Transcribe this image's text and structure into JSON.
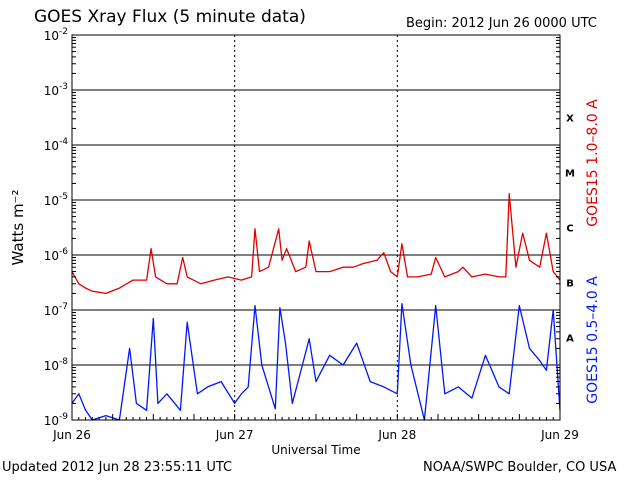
{
  "header": {
    "title": "GOES Xray Flux (5 minute data)",
    "begin": "Begin:  2012 Jun 26 0000 UTC"
  },
  "footer": {
    "updated": "Updated 2012 Jun 28 23:55:11 UTC",
    "credit": "NOAA/SWPC Boulder, CO USA"
  },
  "colors": {
    "long_channel": "#e00000",
    "short_channel": "#0018ff",
    "grid": "#000000"
  },
  "chart_data": {
    "type": "line",
    "xlabel": "Universal Time",
    "ylabel": "Watts m⁻²",
    "y_scale": "log",
    "ylim": [
      1e-09,
      0.01
    ],
    "yticks": [
      1e-09,
      1e-08,
      1e-07,
      1e-06,
      1e-05,
      0.0001,
      0.001,
      0.01
    ],
    "ytick_labels": [
      {
        "base": "10",
        "exp": "-9"
      },
      {
        "base": "10",
        "exp": "-8"
      },
      {
        "base": "10",
        "exp": "-7"
      },
      {
        "base": "10",
        "exp": "-6"
      },
      {
        "base": "10",
        "exp": "-5"
      },
      {
        "base": "10",
        "exp": "-4"
      },
      {
        "base": "10",
        "exp": "-3"
      },
      {
        "base": "10",
        "exp": "-2"
      }
    ],
    "xlim": [
      "2012-06-26 00:00",
      "2012-06-29 00:00"
    ],
    "xticks": [
      "2012-06-26 00:00",
      "2012-06-27 00:00",
      "2012-06-28 00:00",
      "2012-06-29 00:00"
    ],
    "xtick_labels": [
      "Jun 26",
      "Jun 27",
      "Jun 28",
      "Jun 29"
    ],
    "flare_classes": [
      {
        "label": "A",
        "flux": 1e-08
      },
      {
        "label": "B",
        "flux": 1e-07
      },
      {
        "label": "C",
        "flux": 1e-06
      },
      {
        "label": "M",
        "flux": 1e-05
      },
      {
        "label": "X",
        "flux": 0.0001
      }
    ],
    "grid": true,
    "series": [
      {
        "name": "GOES15 1.0–8.0 A",
        "color": "#e00000",
        "x": [
          "2012-06-26 00:00",
          "2012-06-26 01:00",
          "2012-06-26 02:00",
          "2012-06-26 03:00",
          "2012-06-26 05:00",
          "2012-06-26 07:00",
          "2012-06-26 09:00",
          "2012-06-26 11:00",
          "2012-06-26 11:40",
          "2012-06-26 12:20",
          "2012-06-26 14:00",
          "2012-06-26 15:30",
          "2012-06-26 16:20",
          "2012-06-26 17:00",
          "2012-06-26 19:00",
          "2012-06-26 21:00",
          "2012-06-26 23:00",
          "2012-06-27 01:00",
          "2012-06-27 02:30",
          "2012-06-27 03:00",
          "2012-06-27 03:40",
          "2012-06-27 05:00",
          "2012-06-27 06:30",
          "2012-06-27 07:00",
          "2012-06-27 07:40",
          "2012-06-27 09:00",
          "2012-06-27 10:30",
          "2012-06-27 11:00",
          "2012-06-27 12:00",
          "2012-06-27 14:00",
          "2012-06-27 16:00",
          "2012-06-27 17:30",
          "2012-06-27 19:00",
          "2012-06-27 21:00",
          "2012-06-27 22:00",
          "2012-06-27 23:00",
          "2012-06-28 00:00",
          "2012-06-28 00:40",
          "2012-06-28 01:30",
          "2012-06-28 03:00",
          "2012-06-28 05:00",
          "2012-06-28 05:40",
          "2012-06-28 07:00",
          "2012-06-28 09:00",
          "2012-06-28 09:40",
          "2012-06-28 11:00",
          "2012-06-28 13:00",
          "2012-06-28 15:00",
          "2012-06-28 16:00",
          "2012-06-28 16:30",
          "2012-06-28 17:30",
          "2012-06-28 18:30",
          "2012-06-28 19:30",
          "2012-06-28 21:00",
          "2012-06-28 22:00",
          "2012-06-28 23:00",
          "2012-06-29 00:00"
        ],
        "y": [
          5e-07,
          3e-07,
          2.5e-07,
          2.2e-07,
          2e-07,
          2.5e-07,
          3.5e-07,
          3.5e-07,
          1.3e-06,
          4e-07,
          3e-07,
          3e-07,
          9e-07,
          4e-07,
          3e-07,
          3.5e-07,
          4e-07,
          3.5e-07,
          4e-07,
          3e-06,
          5e-07,
          6e-07,
          3e-06,
          8e-07,
          1.3e-06,
          5e-07,
          6e-07,
          1.8e-06,
          5e-07,
          5e-07,
          6e-07,
          6e-07,
          7e-07,
          8e-07,
          1.1e-06,
          5e-07,
          4e-07,
          1.6e-06,
          4e-07,
          4e-07,
          4.5e-07,
          9e-07,
          4e-07,
          5e-07,
          6e-07,
          4e-07,
          4.5e-07,
          4e-07,
          4e-07,
          1.3e-05,
          6e-07,
          2.5e-06,
          8e-07,
          6e-07,
          2.5e-06,
          5e-07,
          3.5e-07
        ]
      },
      {
        "name": "GOES15 0.5–4.0 A",
        "color": "#0018ff",
        "x": [
          "2012-06-26 00:00",
          "2012-06-26 01:00",
          "2012-06-26 02:00",
          "2012-06-26 03:00",
          "2012-06-26 05:00",
          "2012-06-26 07:00",
          "2012-06-26 08:30",
          "2012-06-26 09:30",
          "2012-06-26 11:00",
          "2012-06-26 12:00",
          "2012-06-26 12:40",
          "2012-06-26 14:00",
          "2012-06-26 16:00",
          "2012-06-26 17:00",
          "2012-06-26 18:30",
          "2012-06-26 20:00",
          "2012-06-26 22:00",
          "2012-06-27 00:00",
          "2012-06-27 01:00",
          "2012-06-27 02:00",
          "2012-06-27 03:00",
          "2012-06-27 04:00",
          "2012-06-27 06:00",
          "2012-06-27 06:40",
          "2012-06-27 07:30",
          "2012-06-27 08:30",
          "2012-06-27 10:00",
          "2012-06-27 11:00",
          "2012-06-27 12:00",
          "2012-06-27 14:00",
          "2012-06-27 16:00",
          "2012-06-27 18:00",
          "2012-06-27 20:00",
          "2012-06-27 22:00",
          "2012-06-28 00:00",
          "2012-06-28 00:40",
          "2012-06-28 02:00",
          "2012-06-28 04:00",
          "2012-06-28 05:40",
          "2012-06-28 07:00",
          "2012-06-28 09:00",
          "2012-06-28 11:00",
          "2012-06-28 13:00",
          "2012-06-28 15:00",
          "2012-06-28 16:30",
          "2012-06-28 18:00",
          "2012-06-28 19:30",
          "2012-06-28 21:00",
          "2012-06-28 22:00",
          "2012-06-28 23:00",
          "2012-06-29 00:00"
        ],
        "y": [
          2e-09,
          3e-09,
          1.5e-09,
          1e-09,
          1.2e-09,
          1e-09,
          2e-08,
          2e-09,
          1.5e-09,
          7e-08,
          2e-09,
          3e-09,
          1.5e-09,
          6e-08,
          3e-09,
          4e-09,
          5e-09,
          2e-09,
          3e-09,
          4e-09,
          1.2e-07,
          1e-08,
          1.6e-09,
          1.1e-07,
          2.5e-08,
          2e-09,
          1e-08,
          3e-08,
          5e-09,
          1.5e-08,
          1e-08,
          2.5e-08,
          5e-09,
          4e-09,
          3e-09,
          1.3e-07,
          1e-08,
          1e-09,
          1.2e-07,
          3e-09,
          4e-09,
          2.5e-09,
          1.5e-08,
          4e-09,
          3e-09,
          1.2e-07,
          2e-08,
          1.2e-08,
          8e-09,
          1e-07,
          1.5e-09
        ]
      }
    ]
  }
}
